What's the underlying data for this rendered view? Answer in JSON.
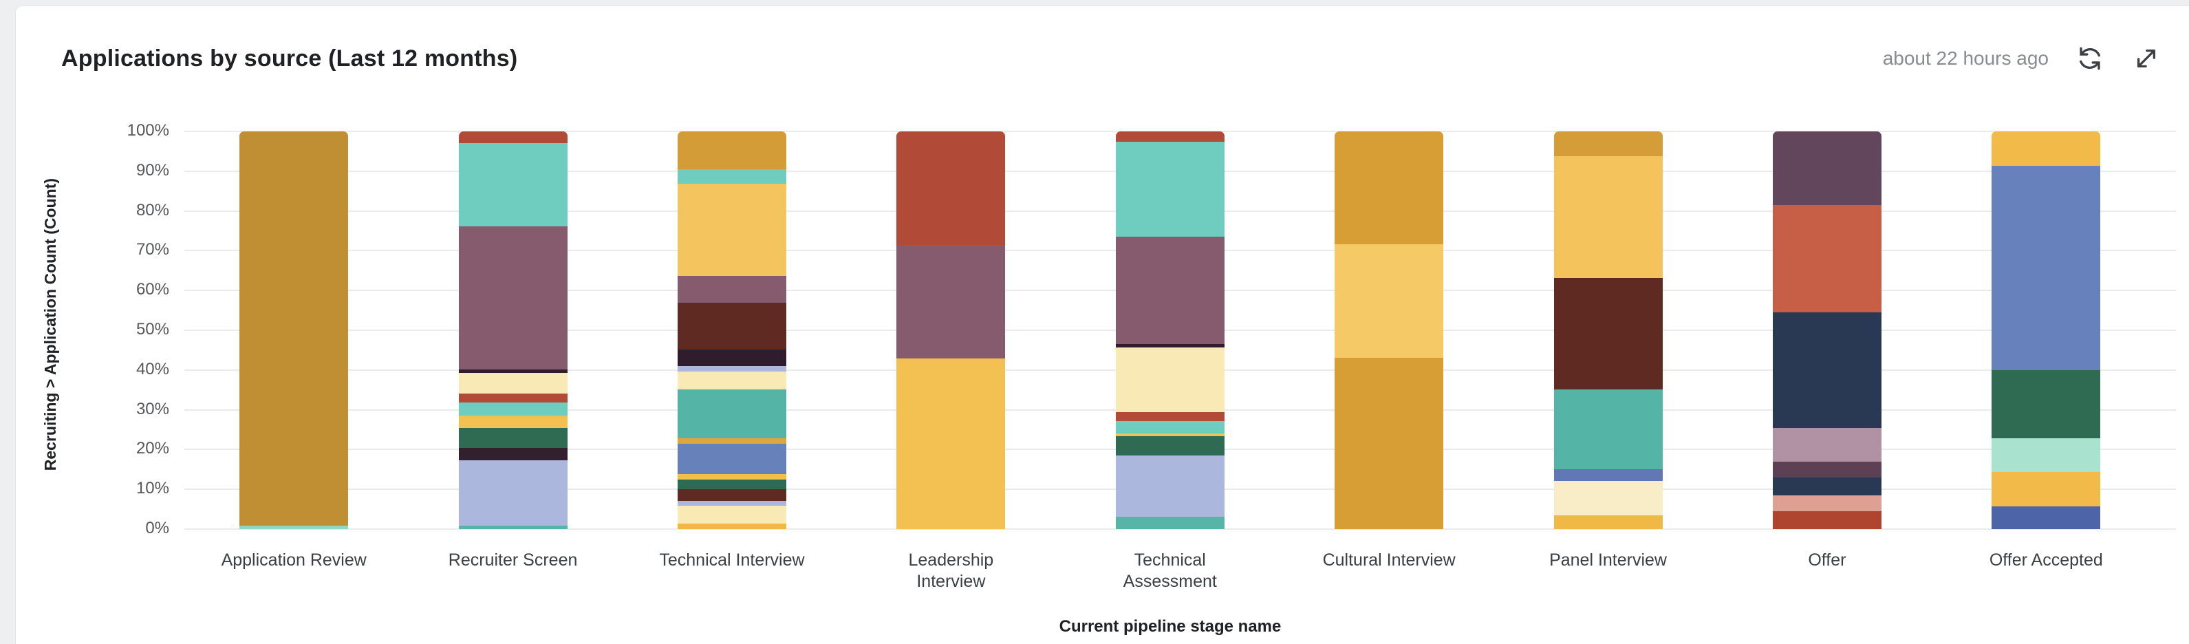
{
  "header": {
    "title": "Applications by source (Last 12 months)",
    "updated": "about 22 hours ago",
    "icons": {
      "refresh": "refresh-icon",
      "expand": "expand-icon"
    },
    "icon_color": "#3c4043"
  },
  "chart_data": {
    "type": "bar",
    "subtype": "stacked-percentage-column",
    "title": "Applications by source (Last 12 months)",
    "xlabel": "Current pipeline stage name",
    "ylabel": "Recruiting > Application Count (Count)",
    "ylim": [
      0,
      100
    ],
    "grid": true,
    "legend_position": "none",
    "y_ticks_top_to_bottom": [
      "100%",
      "90%",
      "80%",
      "70%",
      "60%",
      "50%",
      "40%",
      "30%",
      "20%",
      "10%",
      "0%"
    ],
    "categories": [
      "Application Review",
      "Recruiter Screen",
      "Technical Interview",
      "Leadership\nInterview",
      "Technical\nAssessment",
      "Cultural Interview",
      "Panel Interview",
      "Offer",
      "Offer Accepted"
    ],
    "note": "values are percent of column; segments listed top to bottom; no legend shown in UI",
    "bars": [
      {
        "category": "Application Review",
        "segments": [
          {
            "color": "#c08e33",
            "pct": 99.2
          },
          {
            "color": "#8fd7c4",
            "pct": 0.8
          }
        ]
      },
      {
        "category": "Recruiter Screen",
        "segments": [
          {
            "color": "#b14a36",
            "pct": 2.9
          },
          {
            "color": "#6fcdbf",
            "pct": 20.9
          },
          {
            "color": "#865b6e",
            "pct": 36.0
          },
          {
            "color": "#2f1c2c",
            "pct": 0.9
          },
          {
            "color": "#f9e9b5",
            "pct": 5.2
          },
          {
            "color": "#b14a36",
            "pct": 2.3
          },
          {
            "color": "#6fcdbf",
            "pct": 3.3
          },
          {
            "color": "#f2c152",
            "pct": 3.1
          },
          {
            "color": "#2f6b52",
            "pct": 5.0
          },
          {
            "color": "#33202e",
            "pct": 3.1
          },
          {
            "color": "#abb7dc",
            "pct": 16.4
          },
          {
            "color": "#56b5a6",
            "pct": 0.9
          }
        ]
      },
      {
        "category": "Technical Interview",
        "segments": [
          {
            "color": "#d49c36",
            "pct": 9.5
          },
          {
            "color": "#6fcdbf",
            "pct": 3.7
          },
          {
            "color": "#f4c55e",
            "pct": 23.2
          },
          {
            "color": "#865b6e",
            "pct": 6.6
          },
          {
            "color": "#5e2a22",
            "pct": 11.8
          },
          {
            "color": "#2f1c2c",
            "pct": 4.2
          },
          {
            "color": "#abb7dc",
            "pct": 1.4
          },
          {
            "color": "#f9e9b5",
            "pct": 4.5
          },
          {
            "color": "#54b4a5",
            "pct": 12.2
          },
          {
            "color": "#dfa63e",
            "pct": 1.4
          },
          {
            "color": "#6781bb",
            "pct": 7.7
          },
          {
            "color": "#f2bf4f",
            "pct": 1.3
          },
          {
            "color": "#2f6b52",
            "pct": 2.5
          },
          {
            "color": "#5e2a22",
            "pct": 2.9
          },
          {
            "color": "#abb7dc",
            "pct": 1.3
          },
          {
            "color": "#f9e9b5",
            "pct": 4.5
          },
          {
            "color": "#f0b845",
            "pct": 1.3
          }
        ]
      },
      {
        "category": "Leadership Interview",
        "segments": [
          {
            "color": "#b14a36",
            "pct": 28.6
          },
          {
            "color": "#865b6e",
            "pct": 28.5
          },
          {
            "color": "#f2c152",
            "pct": 42.9
          }
        ]
      },
      {
        "category": "Technical Assessment",
        "segments": [
          {
            "color": "#b14a36",
            "pct": 2.6
          },
          {
            "color": "#6fcdbf",
            "pct": 23.8
          },
          {
            "color": "#865b6e",
            "pct": 27.0
          },
          {
            "color": "#2f1c2c",
            "pct": 0.9
          },
          {
            "color": "#f9e9b5",
            "pct": 16.3
          },
          {
            "color": "#b14a36",
            "pct": 2.3
          },
          {
            "color": "#6fcdbf",
            "pct": 3.0
          },
          {
            "color": "#f2c152",
            "pct": 0.8
          },
          {
            "color": "#2f6b52",
            "pct": 4.8
          },
          {
            "color": "#abb7dc",
            "pct": 15.4
          },
          {
            "color": "#56b5a6",
            "pct": 3.1
          }
        ]
      },
      {
        "category": "Cultural Interview",
        "segments": [
          {
            "color": "#d79e36",
            "pct": 28.4
          },
          {
            "color": "#f6c967",
            "pct": 28.5
          },
          {
            "color": "#d79e36",
            "pct": 43.1
          }
        ]
      },
      {
        "category": "Panel Interview",
        "segments": [
          {
            "color": "#d59d38",
            "pct": 6.3
          },
          {
            "color": "#f4c35c",
            "pct": 30.6
          },
          {
            "color": "#5e2a22",
            "pct": 28.0
          },
          {
            "color": "#54b4a5",
            "pct": 20.0
          },
          {
            "color": "#6277b5",
            "pct": 3.0
          },
          {
            "color": "#f8edc6",
            "pct": 8.6
          },
          {
            "color": "#f0b845",
            "pct": 3.5
          }
        ]
      },
      {
        "category": "Offer",
        "segments": [
          {
            "color": "#62465c",
            "pct": 18.5
          },
          {
            "color": "#c75f47",
            "pct": 27.0
          },
          {
            "color": "#293853",
            "pct": 29.0
          },
          {
            "color": "#b192a4",
            "pct": 8.5
          },
          {
            "color": "#5e4055",
            "pct": 4.1
          },
          {
            "color": "#293853",
            "pct": 4.4
          },
          {
            "color": "#dfa093",
            "pct": 4.0
          },
          {
            "color": "#b0452f",
            "pct": 4.5
          }
        ]
      },
      {
        "category": "Offer Accepted",
        "segments": [
          {
            "color": "#f2bb49",
            "pct": 8.6
          },
          {
            "color": "#6681bc",
            "pct": 51.4
          },
          {
            "color": "#2f6a53",
            "pct": 17.1
          },
          {
            "color": "#a9e2ce",
            "pct": 8.6
          },
          {
            "color": "#f2bb49",
            "pct": 8.6
          },
          {
            "color": "#4d64a8",
            "pct": 5.7
          }
        ]
      }
    ]
  }
}
